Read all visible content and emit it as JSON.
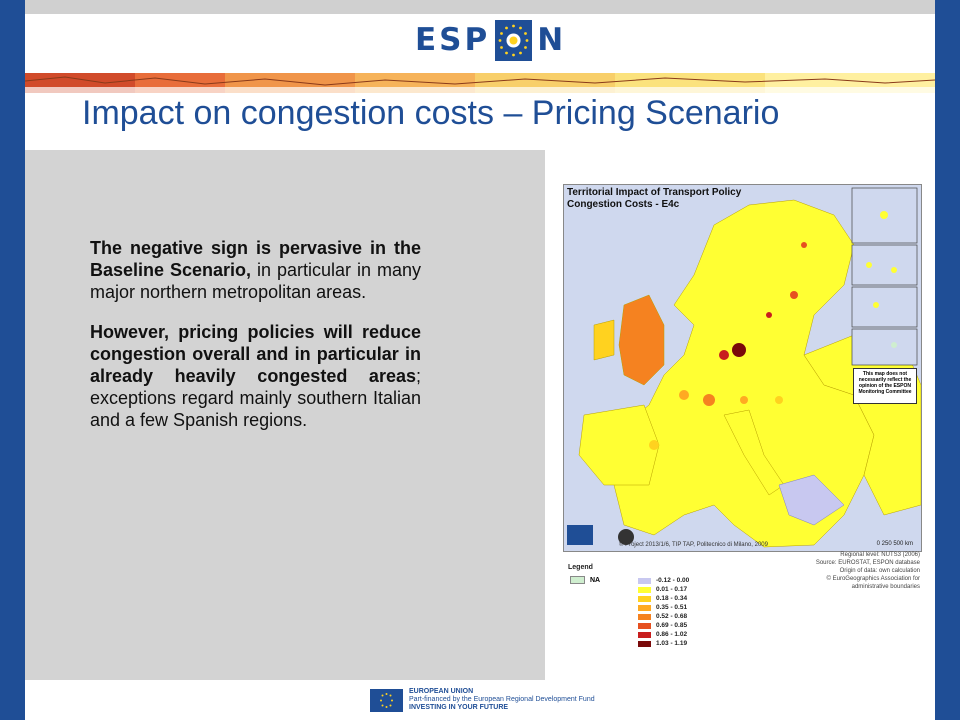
{
  "colors": {
    "accent": "#1f4e96",
    "panel": "#d3d3d3",
    "map_sea": "#cfd8ee"
  },
  "header": {
    "logo_text_left": "ESP",
    "logo_text_right": "N"
  },
  "slide": {
    "title": "Impact on congestion costs – Pricing Scenario"
  },
  "body": {
    "p1_bold": "The negative sign is pervasive in the Baseline Scenario,",
    "p1_rest": " in particular in many major northern metropolitan areas.",
    "p2_bold1": "However, pricing policies will reduce congestion overall and in particular in already heavily congested areas",
    "p2_rest": "; exceptions regard mainly southern Italian and a few Spanish regions."
  },
  "map": {
    "title_line1": "Territorial Impact of Transport Policy",
    "title_line2": "Congestion Costs - E4c",
    "note": "This map does not necessarily reflect the opinion of the ESPON Monitoring Committee",
    "credit": "© Project 2013/1/6, TIP TAP, Politecnico di Milano, 2009",
    "scale": "0   250   500 km",
    "source_lines": [
      "Regional level: NUTS3 (2006)",
      "Source: EUROSTAT, ESPON database",
      "Origin of data: own calculation",
      "© EuroGeographics Association for administrative boundaries"
    ]
  },
  "legend": {
    "title": "Legend",
    "na_label": "NA",
    "na_color": "#cfeecf",
    "classes": [
      {
        "label": "-0.12 - 0.00",
        "color": "#c8c8f0"
      },
      {
        "label": "0.01 - 0.17",
        "color": "#ffff33"
      },
      {
        "label": "0.18 - 0.34",
        "color": "#ffd21f"
      },
      {
        "label": "0.35 - 0.51",
        "color": "#ffaa22"
      },
      {
        "label": "0.52 - 0.68",
        "color": "#f58220"
      },
      {
        "label": "0.69 - 0.85",
        "color": "#e65020"
      },
      {
        "label": "0.86 - 1.02",
        "color": "#c81e1e"
      },
      {
        "label": "1.03 - 1.19",
        "color": "#7a0a0a"
      }
    ]
  },
  "footer": {
    "line1": "EUROPEAN UNION",
    "line2": "Part-financed by the European Regional Development Fund",
    "line3": "INVESTING IN YOUR FUTURE"
  }
}
